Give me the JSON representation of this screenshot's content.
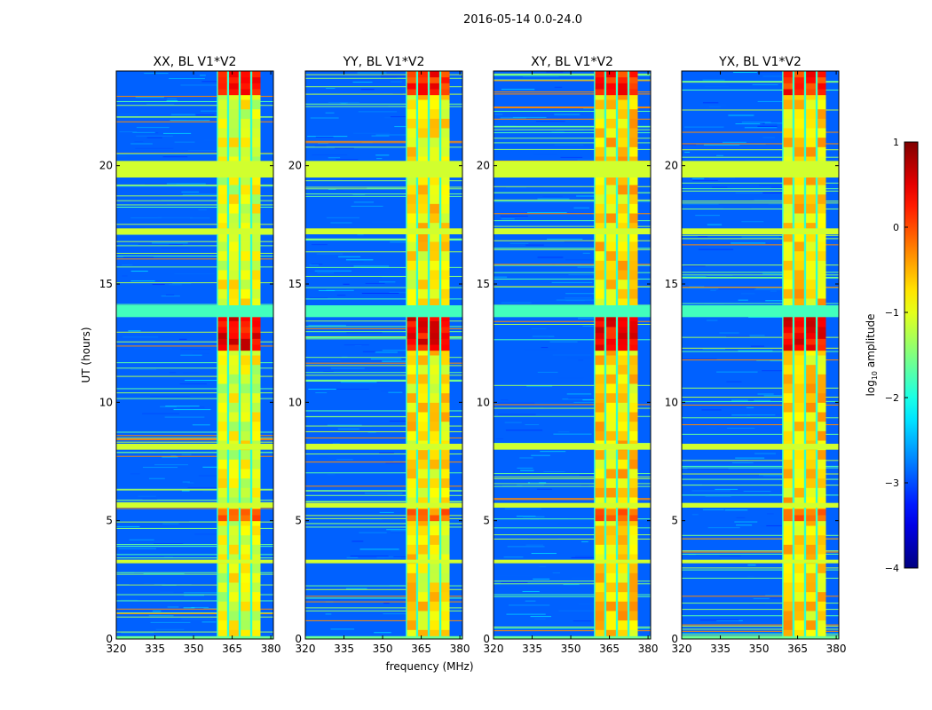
{
  "figure": {
    "suptitle": "2016-05-14 0.0-24.0",
    "xlabel": "frequency (MHz)",
    "ylabel": "UT (hours)"
  },
  "colorbar": {
    "label": "log$_{10}$ amplitude",
    "label_prefix": "log",
    "label_sub": "10",
    "label_suffix": " amplitude",
    "range": [
      -4,
      1
    ],
    "ticks": [
      {
        "value": 1,
        "label": "1"
      },
      {
        "value": 0,
        "label": "0"
      },
      {
        "value": -1,
        "label": "−1"
      },
      {
        "value": -2,
        "label": "−2"
      },
      {
        "value": -3,
        "label": "−3"
      },
      {
        "value": -4,
        "label": "−4"
      }
    ],
    "colormap": "jet",
    "colors": {
      "dark_blue": "#000080",
      "blue": "#0000ff",
      "cyan": "#00ffff",
      "yellow": "#ffff00",
      "red": "#ff0000",
      "dark_red": "#800000"
    }
  },
  "chart_data": [
    {
      "type": "heatmap",
      "title": "XX, BL V1*V2",
      "xlabel": "frequency (MHz)",
      "ylabel": "UT (hours)",
      "xlim": [
        320,
        381
      ],
      "ylim": [
        0,
        24
      ],
      "xticks": [
        {
          "value": 320,
          "label": "320"
        },
        {
          "value": 335,
          "label": "335"
        },
        {
          "value": 350,
          "label": "350"
        },
        {
          "value": 365,
          "label": "365"
        },
        {
          "value": 380,
          "label": "380"
        }
      ],
      "yticks": [
        {
          "value": 0,
          "label": "0"
        },
        {
          "value": 5,
          "label": "5"
        },
        {
          "value": 10,
          "label": "10"
        },
        {
          "value": 15,
          "label": "15"
        },
        {
          "value": 20,
          "label": "20"
        }
      ],
      "bright_band_mhz": [
        359,
        376
      ],
      "background_log10_amp": -2.9,
      "band_log10_amp": -1.0
    },
    {
      "type": "heatmap",
      "title": "YY, BL V1*V2",
      "xlabel": "frequency (MHz)",
      "ylabel": "UT (hours)",
      "xlim": [
        320,
        381
      ],
      "ylim": [
        0,
        24
      ],
      "xticks": [
        {
          "value": 320,
          "label": "320"
        },
        {
          "value": 335,
          "label": "335"
        },
        {
          "value": 350,
          "label": "350"
        },
        {
          "value": 365,
          "label": "365"
        },
        {
          "value": 380,
          "label": "380"
        }
      ],
      "yticks": [
        {
          "value": 0,
          "label": "0"
        },
        {
          "value": 5,
          "label": "5"
        },
        {
          "value": 10,
          "label": "10"
        },
        {
          "value": 15,
          "label": "15"
        },
        {
          "value": 20,
          "label": "20"
        }
      ],
      "bright_band_mhz": [
        359,
        376
      ],
      "background_log10_amp": -2.9,
      "band_log10_amp": -0.8
    },
    {
      "type": "heatmap",
      "title": "XY, BL V1*V2",
      "xlabel": "frequency (MHz)",
      "ylabel": "UT (hours)",
      "xlim": [
        320,
        381
      ],
      "ylim": [
        0,
        24
      ],
      "xticks": [
        {
          "value": 320,
          "label": "320"
        },
        {
          "value": 335,
          "label": "335"
        },
        {
          "value": 350,
          "label": "350"
        },
        {
          "value": 365,
          "label": "365"
        },
        {
          "value": 380,
          "label": "380"
        }
      ],
      "yticks": [
        {
          "value": 0,
          "label": "0"
        },
        {
          "value": 5,
          "label": "5"
        },
        {
          "value": 10,
          "label": "10"
        },
        {
          "value": 15,
          "label": "15"
        },
        {
          "value": 20,
          "label": "20"
        }
      ],
      "bright_band_mhz": [
        359,
        376
      ],
      "background_log10_amp": -2.9,
      "band_log10_amp": -0.7
    },
    {
      "type": "heatmap",
      "title": "YX, BL V1*V2",
      "xlabel": "frequency (MHz)",
      "ylabel": "UT (hours)",
      "xlim": [
        320,
        381
      ],
      "ylim": [
        0,
        24
      ],
      "xticks": [
        {
          "value": 320,
          "label": "320"
        },
        {
          "value": 335,
          "label": "335"
        },
        {
          "value": 350,
          "label": "350"
        },
        {
          "value": 365,
          "label": "365"
        },
        {
          "value": 380,
          "label": "380"
        }
      ],
      "yticks": [
        {
          "value": 0,
          "label": "0"
        },
        {
          "value": 5,
          "label": "5"
        },
        {
          "value": 10,
          "label": "10"
        },
        {
          "value": 15,
          "label": "15"
        },
        {
          "value": 20,
          "label": "20"
        }
      ],
      "bright_band_mhz": [
        359,
        376
      ],
      "background_log10_amp": -2.9,
      "band_log10_amp": -0.7
    }
  ],
  "channel_columns_mhz": [
    {
      "start": 359.5,
      "end": 363.0
    },
    {
      "start": 363.8,
      "end": 367.5
    },
    {
      "start": 368.3,
      "end": 372.0
    },
    {
      "start": 372.8,
      "end": 376.0
    }
  ],
  "time_features": [
    {
      "ut_start": 19.5,
      "ut_end": 20.2,
      "log10_amp": -1.1,
      "kind": "flagged-band"
    },
    {
      "ut_start": 17.1,
      "ut_end": 17.35,
      "log10_amp": -1.1,
      "kind": "flagged-band"
    },
    {
      "ut_start": 13.6,
      "ut_end": 14.1,
      "log10_amp": -1.8,
      "kind": "enhanced-band"
    },
    {
      "ut_start": 8.0,
      "ut_end": 8.25,
      "log10_amp": -1.1,
      "kind": "flagged-band"
    },
    {
      "ut_start": 5.55,
      "ut_end": 5.75,
      "log10_amp": -1.1,
      "kind": "flagged-band"
    },
    {
      "ut_start": 3.2,
      "ut_end": 3.35,
      "log10_amp": -1.1,
      "kind": "flagged-band"
    },
    {
      "ut_start": 0.0,
      "ut_end": 0.12,
      "log10_amp": -1.6,
      "kind": "edge"
    }
  ],
  "strong_rfi_windows": [
    {
      "ut_start": 23.0,
      "ut_end": 24.0,
      "log10_amp": 0.2
    },
    {
      "ut_start": 12.2,
      "ut_end": 13.6,
      "log10_amp": 0.4
    },
    {
      "ut_start": 5.0,
      "ut_end": 5.5,
      "log10_amp": -0.2
    }
  ]
}
